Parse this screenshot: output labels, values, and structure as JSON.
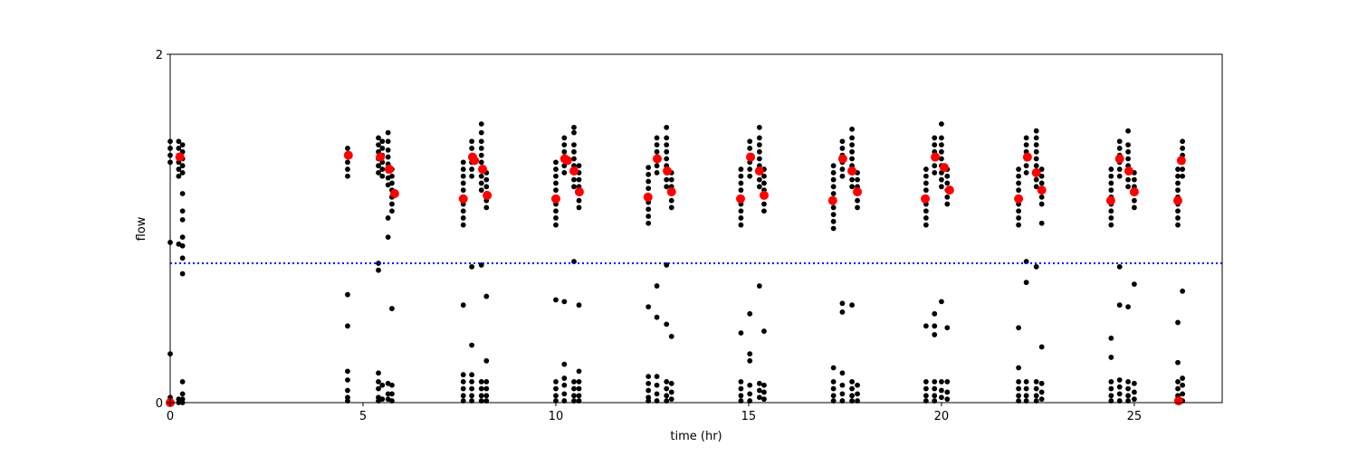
{
  "chart_data": {
    "type": "scatter",
    "title": "",
    "xlabel": "time (hr)",
    "ylabel": "flow",
    "xlim": [
      0,
      27.28
    ],
    "ylim": [
      0,
      2
    ],
    "xticks": [
      "0",
      "5",
      "10",
      "15",
      "20",
      "25"
    ],
    "yticks": [
      "0",
      "2"
    ],
    "grid": false,
    "threshold_line": {
      "y": 0.8,
      "color": "#0000ff",
      "style": "dotted"
    },
    "colors": {
      "raw": "#000000",
      "mean": "#ff0000"
    },
    "raw_columns": [
      {
        "x": 0.0,
        "y": [
          1.38,
          1.42,
          1.46,
          1.5,
          0.92,
          0.28,
          0.03,
          0.0
        ]
      },
      {
        "x": 0.22,
        "y": [
          1.3,
          1.34,
          1.38,
          1.42,
          1.46,
          1.5,
          0.91,
          0.02,
          0.0
        ]
      },
      {
        "x": 0.32,
        "y": [
          1.32,
          1.36,
          1.4,
          1.44,
          1.48,
          1.2,
          1.1,
          1.05,
          0.95,
          0.9,
          0.83,
          0.74,
          0.12,
          0.05,
          0.02,
          0.0
        ]
      },
      {
        "x": 4.6,
        "y": [
          1.3,
          1.34,
          1.38,
          1.42,
          1.46,
          0.62,
          0.44,
          0.18,
          0.13,
          0.07,
          0.03,
          0.01
        ]
      },
      {
        "x": 5.4,
        "y": [
          1.32,
          1.36,
          1.4,
          1.44,
          1.48,
          1.52,
          0.8,
          0.76,
          0.17,
          0.12,
          0.08,
          0.03,
          0.01
        ]
      },
      {
        "x": 5.5,
        "y": [
          1.3,
          1.34,
          1.38,
          1.42,
          1.46,
          1.5,
          0.1,
          0.02
        ]
      },
      {
        "x": 5.65,
        "y": [
          1.25,
          1.29,
          1.33,
          1.37,
          1.41,
          1.45,
          1.5,
          1.55,
          1.06,
          0.95,
          0.11,
          0.05,
          0.02
        ]
      },
      {
        "x": 5.75,
        "y": [
          1.1,
          1.14,
          1.18,
          1.22,
          1.26,
          1.3,
          1.34,
          0.54,
          0.1,
          0.05,
          0.01
        ]
      },
      {
        "x": 7.6,
        "y": [
          1.02,
          1.06,
          1.1,
          1.14,
          1.18,
          1.22,
          1.26,
          1.3,
          1.34,
          1.38,
          0.56,
          0.16,
          0.12,
          0.08,
          0.04,
          0.01
        ]
      },
      {
        "x": 7.82,
        "y": [
          1.3,
          1.34,
          1.38,
          1.42,
          1.46,
          1.5,
          0.78,
          0.33,
          0.16,
          0.12,
          0.08,
          0.04,
          0.01
        ]
      },
      {
        "x": 8.07,
        "y": [
          1.22,
          1.26,
          1.3,
          1.34,
          1.38,
          1.42,
          1.46,
          1.5,
          1.55,
          1.6,
          0.79,
          0.12,
          0.08,
          0.04,
          0.01
        ]
      },
      {
        "x": 8.2,
        "y": [
          1.12,
          1.16,
          1.2,
          1.24,
          1.28,
          1.32,
          0.61,
          0.24,
          0.12,
          0.08,
          0.04,
          0.01
        ]
      },
      {
        "x": 10.0,
        "y": [
          1.02,
          1.06,
          1.1,
          1.14,
          1.18,
          1.22,
          1.26,
          1.3,
          1.34,
          1.38,
          0.59,
          0.12,
          0.08,
          0.04,
          0.01
        ]
      },
      {
        "x": 10.22,
        "y": [
          1.32,
          1.36,
          1.4,
          1.44,
          1.48,
          1.52,
          0.58,
          0.22,
          0.14,
          0.1,
          0.05,
          0.01
        ]
      },
      {
        "x": 10.47,
        "y": [
          1.24,
          1.28,
          1.32,
          1.36,
          1.4,
          1.44,
          1.48,
          1.55,
          1.58,
          0.81,
          0.12,
          0.08,
          0.04,
          0.01
        ]
      },
      {
        "x": 10.6,
        "y": [
          1.12,
          1.16,
          1.2,
          1.24,
          1.28,
          1.32,
          1.36,
          0.56,
          0.18,
          0.12,
          0.08,
          0.04,
          0.01
        ]
      },
      {
        "x": 12.4,
        "y": [
          1.03,
          1.07,
          1.11,
          1.15,
          1.19,
          1.23,
          1.27,
          1.31,
          1.35,
          0.55,
          0.15,
          0.11,
          0.07,
          0.03,
          0.01
        ]
      },
      {
        "x": 12.62,
        "y": [
          1.32,
          1.36,
          1.4,
          1.44,
          1.48,
          1.52,
          0.67,
          0.49,
          0.15,
          0.1,
          0.05,
          0.01
        ]
      },
      {
        "x": 12.87,
        "y": [
          1.24,
          1.28,
          1.32,
          1.36,
          1.4,
          1.44,
          1.48,
          1.52,
          1.58,
          0.79,
          0.45,
          0.12,
          0.08,
          0.04,
          0.01
        ]
      },
      {
        "x": 13.0,
        "y": [
          1.12,
          1.16,
          1.2,
          1.24,
          1.28,
          1.32,
          0.38,
          0.11,
          0.06,
          0.02
        ]
      },
      {
        "x": 14.8,
        "y": [
          1.02,
          1.06,
          1.1,
          1.14,
          1.18,
          1.22,
          1.26,
          1.3,
          1.34,
          0.4,
          0.12,
          0.08,
          0.04,
          0.01
        ]
      },
      {
        "x": 15.03,
        "y": [
          1.3,
          1.34,
          1.38,
          1.42,
          1.46,
          1.5,
          0.51,
          0.28,
          0.24,
          0.1,
          0.05,
          0.01
        ]
      },
      {
        "x": 15.28,
        "y": [
          1.24,
          1.28,
          1.32,
          1.36,
          1.4,
          1.44,
          1.48,
          1.52,
          1.58,
          0.67,
          0.11,
          0.07,
          0.03
        ]
      },
      {
        "x": 15.4,
        "y": [
          1.1,
          1.14,
          1.18,
          1.22,
          1.26,
          1.3,
          1.34,
          0.41,
          0.1,
          0.06,
          0.02
        ]
      },
      {
        "x": 17.2,
        "y": [
          1.0,
          1.04,
          1.08,
          1.12,
          1.16,
          1.2,
          1.24,
          1.28,
          1.32,
          1.36,
          0.2,
          0.12,
          0.08,
          0.04,
          0.01
        ]
      },
      {
        "x": 17.43,
        "y": [
          1.3,
          1.34,
          1.38,
          1.42,
          1.46,
          1.5,
          0.52,
          0.57,
          0.17,
          0.1,
          0.05,
          0.01
        ]
      },
      {
        "x": 17.68,
        "y": [
          1.24,
          1.28,
          1.32,
          1.36,
          1.4,
          1.44,
          1.48,
          1.52,
          1.57,
          0.56,
          0.12,
          0.08,
          0.04,
          0.01
        ]
      },
      {
        "x": 17.82,
        "y": [
          1.12,
          1.16,
          1.2,
          1.24,
          1.28,
          1.32,
          0.1,
          0.05,
          0.01
        ]
      },
      {
        "x": 19.6,
        "y": [
          1.02,
          1.06,
          1.1,
          1.14,
          1.18,
          1.22,
          1.26,
          1.3,
          1.34,
          0.44,
          0.12,
          0.08,
          0.04,
          0.01
        ]
      },
      {
        "x": 19.82,
        "y": [
          1.32,
          1.36,
          1.4,
          1.44,
          1.48,
          1.52,
          0.51,
          0.44,
          0.39,
          0.12,
          0.08,
          0.04,
          0.01
        ]
      },
      {
        "x": 20.0,
        "y": [
          1.24,
          1.28,
          1.32,
          1.36,
          1.4,
          1.44,
          1.48,
          1.52,
          1.6,
          0.58,
          0.12,
          0.07,
          0.03
        ]
      },
      {
        "x": 20.15,
        "y": [
          1.14,
          1.18,
          1.22,
          1.26,
          1.3,
          1.34,
          0.43,
          0.12,
          0.06,
          0.02
        ]
      },
      {
        "x": 22.0,
        "y": [
          1.02,
          1.06,
          1.1,
          1.14,
          1.18,
          1.22,
          1.26,
          1.3,
          1.34,
          0.43,
          0.2,
          0.12,
          0.08,
          0.04,
          0.01
        ]
      },
      {
        "x": 22.2,
        "y": [
          1.32,
          1.36,
          1.4,
          1.44,
          1.48,
          1.52,
          0.81,
          0.69,
          0.12,
          0.08,
          0.04,
          0.01
        ]
      },
      {
        "x": 22.46,
        "y": [
          1.24,
          1.28,
          1.32,
          1.36,
          1.4,
          1.44,
          1.48,
          1.52,
          1.56,
          0.78,
          0.12,
          0.08,
          0.04,
          0.01
        ]
      },
      {
        "x": 22.6,
        "y": [
          1.14,
          1.18,
          1.22,
          1.26,
          1.3,
          1.34,
          1.03,
          0.32,
          0.11,
          0.06,
          0.02
        ]
      },
      {
        "x": 24.4,
        "y": [
          1.02,
          1.06,
          1.1,
          1.14,
          1.18,
          1.22,
          1.26,
          1.3,
          1.34,
          0.37,
          0.26,
          0.12,
          0.08,
          0.04,
          0.01
        ]
      },
      {
        "x": 24.62,
        "y": [
          1.3,
          1.34,
          1.38,
          1.42,
          1.46,
          1.5,
          0.56,
          0.78,
          0.13,
          0.09,
          0.05,
          0.01
        ]
      },
      {
        "x": 24.84,
        "y": [
          1.24,
          1.28,
          1.32,
          1.36,
          1.4,
          1.44,
          1.48,
          1.56,
          0.55,
          0.12,
          0.08,
          0.04,
          0.01
        ]
      },
      {
        "x": 25.0,
        "y": [
          1.12,
          1.16,
          1.2,
          1.24,
          1.28,
          1.32,
          0.68,
          0.11,
          0.06,
          0.02
        ]
      },
      {
        "x": 26.13,
        "y": [
          1.02,
          1.06,
          1.1,
          1.14,
          1.18,
          1.22,
          1.26,
          1.3,
          1.34,
          0.46,
          0.23,
          0.12,
          0.08,
          0.04,
          0.01
        ]
      },
      {
        "x": 26.25,
        "y": [
          1.3,
          1.34,
          1.38,
          1.42,
          1.46,
          1.5,
          0.64,
          0.14,
          0.1,
          0.05,
          0.01
        ]
      }
    ],
    "mean_points": [
      [
        0.0,
        0.0
      ],
      [
        0.25,
        1.41
      ],
      [
        4.62,
        1.42
      ],
      [
        5.45,
        1.41
      ],
      [
        5.68,
        1.34
      ],
      [
        5.82,
        1.2
      ],
      [
        7.6,
        1.17
      ],
      [
        7.84,
        1.41
      ],
      [
        7.89,
        1.39
      ],
      [
        8.1,
        1.34
      ],
      [
        8.22,
        1.19
      ],
      [
        10.0,
        1.17
      ],
      [
        10.23,
        1.4
      ],
      [
        10.3,
        1.39
      ],
      [
        10.47,
        1.33
      ],
      [
        10.61,
        1.21
      ],
      [
        12.39,
        1.18
      ],
      [
        12.63,
        1.4
      ],
      [
        12.89,
        1.33
      ],
      [
        13.0,
        1.21
      ],
      [
        14.79,
        1.17
      ],
      [
        15.05,
        1.41
      ],
      [
        15.28,
        1.33
      ],
      [
        15.4,
        1.19
      ],
      [
        17.18,
        1.16
      ],
      [
        17.44,
        1.4
      ],
      [
        17.68,
        1.33
      ],
      [
        17.82,
        1.21
      ],
      [
        19.58,
        1.17
      ],
      [
        19.84,
        1.41
      ],
      [
        20.07,
        1.35
      ],
      [
        20.21,
        1.22
      ],
      [
        22.0,
        1.17
      ],
      [
        22.23,
        1.41
      ],
      [
        22.46,
        1.32
      ],
      [
        22.6,
        1.22
      ],
      [
        24.39,
        1.16
      ],
      [
        24.62,
        1.4
      ],
      [
        24.86,
        1.33
      ],
      [
        25.0,
        1.21
      ],
      [
        26.13,
        1.16
      ],
      [
        26.22,
        1.39
      ],
      [
        26.15,
        0.01
      ]
    ]
  }
}
